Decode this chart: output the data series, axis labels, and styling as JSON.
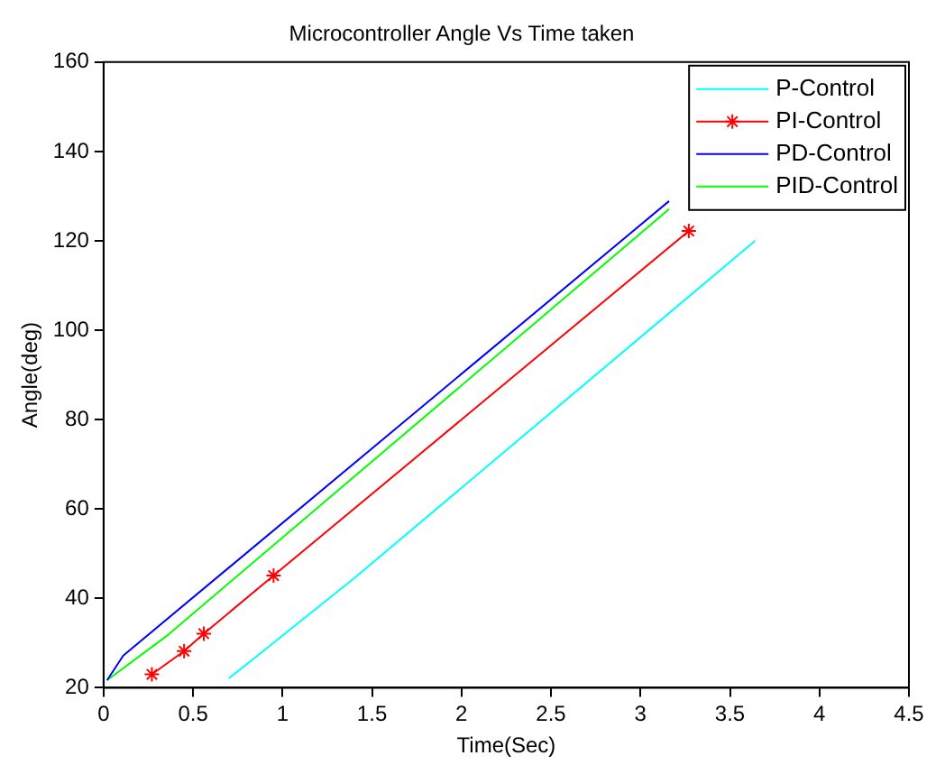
{
  "chart_data": {
    "type": "line",
    "title": "Microcontroller Angle Vs Time taken",
    "xlabel": "Time(Sec)",
    "ylabel": "Angle(deg)",
    "xlim": [
      0,
      4.5
    ],
    "xticks": [
      0,
      0.5,
      1,
      1.5,
      2,
      2.5,
      3,
      3.5,
      4,
      4.5
    ],
    "ylim": [
      20,
      160
    ],
    "yticks": [
      20,
      40,
      60,
      80,
      100,
      120,
      140,
      160
    ],
    "grid": false,
    "legend": "top right",
    "marker": "none",
    "line_style": "solid",
    "series": [
      {
        "name": "P-Control",
        "color": "#00ffff",
        "x": [
          0.7,
          0.87,
          1.4,
          3.64
        ],
        "values": [
          22.1,
          27.5,
          44.5,
          120
        ]
      },
      {
        "name": "PI-Control",
        "color": "#ff0000",
        "marker": "cross",
        "x": [
          0.27,
          0.45,
          0.56,
          0.95,
          3.27
        ],
        "values": [
          23,
          28.2,
          32.1,
          45.1,
          122.2
        ]
      },
      {
        "name": "PD-Control",
        "color": "#0000ff",
        "x": [
          0.02,
          0.11,
          3.16
        ],
        "values": [
          21.7,
          27.2,
          128.9
        ]
      },
      {
        "name": "PID-Control",
        "color": "#00ff00",
        "x": [
          0.02,
          0.35,
          3.16
        ],
        "values": [
          21.7,
          31.5,
          127.1
        ]
      }
    ]
  }
}
